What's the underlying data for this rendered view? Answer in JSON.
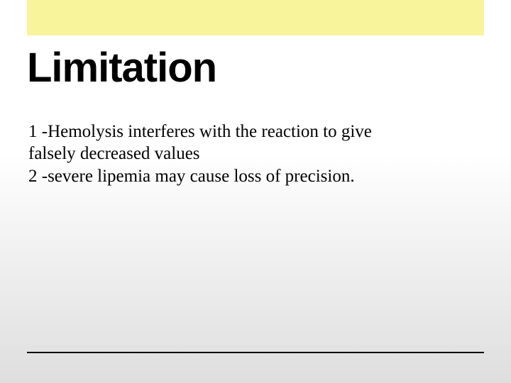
{
  "slide": {
    "accent_bar_color": "#f8f49b",
    "title": "Limitation",
    "title_color": "#000000",
    "title_fontsize": 58,
    "body_lines": {
      "line1": "1 -Hemolysis interferes with the reaction to give",
      "line2": " falsely decreased values",
      "line3": "2 -severe lipemia  may cause loss of precision."
    },
    "body_fontsize": 25,
    "body_color": "#000000",
    "background_gradient": {
      "top": "#ffffff",
      "bottom": "#dedede"
    },
    "rule_color": "#000000"
  }
}
